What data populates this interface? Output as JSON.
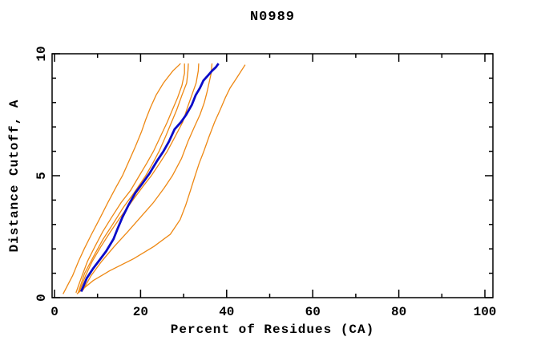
{
  "figure": {
    "title": "N0989",
    "background_color": "#ffffff"
  },
  "chart_data": {
    "type": "line",
    "title": "N0989",
    "xlabel": "Percent of Residues (CA)",
    "ylabel": "Distance Cutoff, A",
    "xlim": [
      0,
      100
    ],
    "ylim": [
      0,
      10
    ],
    "x_major_ticks": [
      0,
      20,
      40,
      60,
      80,
      100
    ],
    "x_minor_ticks": [
      10,
      30,
      50,
      70,
      90
    ],
    "y_major_ticks": [
      0,
      5,
      10
    ],
    "y_minor_ticks": [
      1,
      2,
      3,
      4,
      6,
      7,
      8,
      9
    ],
    "grid": false,
    "legend_position": "none",
    "axis_color": "#000000",
    "tick_style": "inward-mirrored",
    "series": [
      {
        "name": "model-orange-1",
        "color": "#EE8813",
        "line_width": 1.3,
        "points": [
          [
            2.0,
            0.15
          ],
          [
            4.2,
            0.9
          ],
          [
            5.6,
            1.5
          ],
          [
            6.9,
            2.0
          ],
          [
            8.6,
            2.6
          ],
          [
            10.4,
            3.2
          ],
          [
            12.4,
            3.9
          ],
          [
            14.2,
            4.5
          ],
          [
            15.8,
            5.0
          ],
          [
            17.3,
            5.6
          ],
          [
            18.8,
            6.2
          ],
          [
            20.2,
            6.8
          ],
          [
            21.2,
            7.3
          ],
          [
            22.3,
            7.8
          ],
          [
            23.6,
            8.3
          ],
          [
            25.3,
            8.8
          ],
          [
            27.5,
            9.3
          ],
          [
            29.3,
            9.6
          ]
        ]
      },
      {
        "name": "model-orange-2",
        "color": "#EE8813",
        "line_width": 1.3,
        "points": [
          [
            5.0,
            0.2
          ],
          [
            6.4,
            0.9
          ],
          [
            7.7,
            1.5
          ],
          [
            9.4,
            2.1
          ],
          [
            11.2,
            2.7
          ],
          [
            13.3,
            3.3
          ],
          [
            15.5,
            3.9
          ],
          [
            17.7,
            4.4
          ],
          [
            19.7,
            5.0
          ],
          [
            21.4,
            5.5
          ],
          [
            23.0,
            6.0
          ],
          [
            24.6,
            6.6
          ],
          [
            26.2,
            7.2
          ],
          [
            27.4,
            7.7
          ],
          [
            28.6,
            8.2
          ],
          [
            29.6,
            8.7
          ],
          [
            30.2,
            9.2
          ],
          [
            30.2,
            9.6
          ]
        ]
      },
      {
        "name": "model-orange-3",
        "color": "#EE8813",
        "line_width": 1.3,
        "points": [
          [
            5.5,
            0.2
          ],
          [
            7.0,
            1.0
          ],
          [
            9.4,
            1.8
          ],
          [
            11.3,
            2.4
          ],
          [
            13.5,
            3.0
          ],
          [
            16.0,
            3.7
          ],
          [
            18.5,
            4.3
          ],
          [
            21.2,
            5.0
          ],
          [
            22.8,
            5.5
          ],
          [
            24.3,
            6.0
          ],
          [
            25.8,
            6.6
          ],
          [
            27.2,
            7.2
          ],
          [
            28.4,
            7.7
          ],
          [
            29.6,
            8.3
          ],
          [
            30.7,
            8.8
          ],
          [
            31.0,
            9.3
          ],
          [
            31.1,
            9.6
          ]
        ]
      },
      {
        "name": "model-orange-4",
        "color": "#EE8813",
        "line_width": 1.3,
        "points": [
          [
            5.8,
            0.25
          ],
          [
            7.2,
            0.9
          ],
          [
            8.8,
            1.5
          ],
          [
            10.8,
            2.1
          ],
          [
            13.0,
            2.7
          ],
          [
            15.3,
            3.3
          ],
          [
            17.8,
            3.9
          ],
          [
            20.3,
            4.5
          ],
          [
            22.5,
            5.0
          ],
          [
            24.4,
            5.5
          ],
          [
            26.2,
            6.0
          ],
          [
            28.0,
            6.6
          ],
          [
            29.8,
            7.2
          ],
          [
            30.9,
            7.8
          ],
          [
            31.9,
            8.3
          ],
          [
            32.9,
            8.8
          ],
          [
            33.4,
            9.3
          ],
          [
            33.5,
            9.6
          ]
        ]
      },
      {
        "name": "model-orange-5",
        "color": "#EE8813",
        "line_width": 1.3,
        "points": [
          [
            6.6,
            0.3
          ],
          [
            8.5,
            0.9
          ],
          [
            11.0,
            1.5
          ],
          [
            13.9,
            2.1
          ],
          [
            17.0,
            2.7
          ],
          [
            20.0,
            3.3
          ],
          [
            23.0,
            3.9
          ],
          [
            25.5,
            4.5
          ],
          [
            27.4,
            5.0
          ],
          [
            29.5,
            5.7
          ],
          [
            31.0,
            6.4
          ],
          [
            32.5,
            7.0
          ],
          [
            33.8,
            7.5
          ],
          [
            34.8,
            8.0
          ],
          [
            35.4,
            8.4
          ],
          [
            35.9,
            8.8
          ],
          [
            36.4,
            9.2
          ],
          [
            36.6,
            9.6
          ]
        ]
      },
      {
        "name": "model-orange-6",
        "color": "#EE8813",
        "line_width": 1.3,
        "points": [
          [
            5.2,
            0.15
          ],
          [
            9.0,
            0.7
          ],
          [
            12.8,
            1.1
          ],
          [
            18.4,
            1.6
          ],
          [
            23.1,
            2.1
          ],
          [
            26.9,
            2.6
          ],
          [
            29.2,
            3.2
          ],
          [
            30.5,
            3.8
          ],
          [
            31.6,
            4.4
          ],
          [
            32.5,
            4.9
          ],
          [
            33.6,
            5.5
          ],
          [
            34.7,
            6.0
          ],
          [
            35.9,
            6.6
          ],
          [
            37.2,
            7.2
          ],
          [
            38.5,
            7.7
          ],
          [
            39.7,
            8.2
          ],
          [
            40.8,
            8.6
          ],
          [
            42.3,
            9.0
          ],
          [
            44.3,
            9.55
          ]
        ]
      },
      {
        "name": "model-blue-main",
        "color": "#0B0BC8",
        "line_width": 2.8,
        "points": [
          [
            6.2,
            0.25
          ],
          [
            7.5,
            0.8
          ],
          [
            9.0,
            1.2
          ],
          [
            10.5,
            1.55
          ],
          [
            12.0,
            1.9
          ],
          [
            13.7,
            2.4
          ],
          [
            14.6,
            2.8
          ],
          [
            15.8,
            3.3
          ],
          [
            17.2,
            3.8
          ],
          [
            18.8,
            4.3
          ],
          [
            20.5,
            4.7
          ],
          [
            22.1,
            5.1
          ],
          [
            23.8,
            5.6
          ],
          [
            25.3,
            6.0
          ],
          [
            26.6,
            6.4
          ],
          [
            27.9,
            6.9
          ],
          [
            29.4,
            7.2
          ],
          [
            30.6,
            7.5
          ],
          [
            31.9,
            7.9
          ],
          [
            32.8,
            8.3
          ],
          [
            33.8,
            8.6
          ],
          [
            34.6,
            8.9
          ],
          [
            35.6,
            9.1
          ],
          [
            36.6,
            9.3
          ],
          [
            37.5,
            9.45
          ],
          [
            38.1,
            9.6
          ]
        ]
      }
    ]
  }
}
